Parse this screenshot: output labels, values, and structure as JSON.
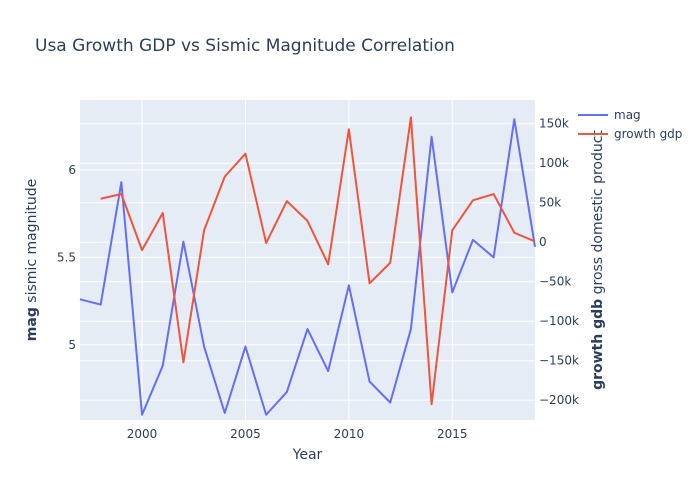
{
  "chart_data": {
    "type": "line",
    "title": "Usa Growth GDP vs Sismic Magnitude Correlation",
    "xlabel": "Year",
    "ylabel_left_bold": "mag",
    "ylabel_left_rest": " sismic magnitude",
    "ylabel_right_bold": "growth gdb",
    "ylabel_right_rest": " gross domestic product",
    "xlim": [
      1997,
      2019
    ],
    "ylim_left": [
      4.57,
      6.4
    ],
    "ylim_right": [
      -225000,
      180000
    ],
    "x_ticks": [
      2000,
      2005,
      2010,
      2015
    ],
    "y_left_ticks": [
      5,
      5.5,
      6
    ],
    "y_right_ticks": [
      150000,
      100000,
      50000,
      0,
      -50000,
      -100000,
      -150000,
      -200000
    ],
    "y_right_tick_labels": [
      "150k",
      "100k",
      "50k",
      "0",
      "−50k",
      "−100k",
      "−150k",
      "−200k"
    ],
    "legend_position": "top-right",
    "series": [
      {
        "name": "mag",
        "axis": "left",
        "color": "#636efa",
        "x": [
          1997,
          1998,
          1999,
          2000,
          2001,
          2002,
          2003,
          2004,
          2005,
          2006,
          2007,
          2008,
          2009,
          2010,
          2011,
          2012,
          2013,
          2014,
          2015,
          2016,
          2017,
          2018,
          2019
        ],
        "values": [
          5.26,
          5.23,
          5.93,
          4.6,
          4.88,
          5.59,
          4.99,
          4.61,
          4.99,
          4.6,
          4.73,
          5.09,
          4.85,
          5.34,
          4.79,
          4.67,
          5.09,
          6.19,
          5.3,
          5.6,
          5.5,
          6.29,
          5.56
        ]
      },
      {
        "name": "growth gdp",
        "color": "#ef553b",
        "axis": "right",
        "x": [
          1998,
          1999,
          2000,
          2001,
          2002,
          2003,
          2004,
          2005,
          2006,
          2007,
          2008,
          2009,
          2010,
          2011,
          2012,
          2013,
          2014,
          2015,
          2016,
          2017,
          2018,
          2019
        ],
        "values": [
          55000,
          61000,
          -10000,
          37000,
          -152000,
          15000,
          83000,
          112000,
          -1000,
          52000,
          27000,
          -28000,
          143000,
          -52000,
          -26000,
          158000,
          -205000,
          15000,
          53000,
          61000,
          12000,
          1000
        ]
      }
    ]
  }
}
